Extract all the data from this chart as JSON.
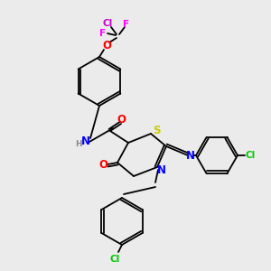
{
  "bg_color": "#ebebeb",
  "colors": {
    "bond": "#000000",
    "N": "#0000ff",
    "O": "#ff0000",
    "S": "#cccc00",
    "Cl_green": "#00cc00",
    "Cl_magenta": "#cc00cc",
    "F": "#ff00ff",
    "H": "#888888"
  },
  "figsize": [
    3.0,
    3.0
  ],
  "dpi": 100
}
